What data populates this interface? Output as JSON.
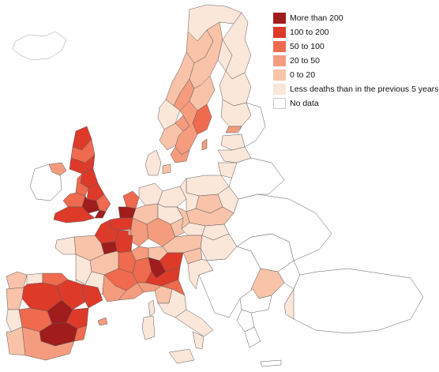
{
  "colors": {
    "background": "#ffffff",
    "border": "#5a5a5a",
    "more_than_200": "#a11c1c",
    "100_to_200": "#dd3a2a",
    "50_to_100": "#ef6a4e",
    "20_to_50": "#f59c7e",
    "0_to_20": "#f8c3a9",
    "less_deaths": "#fbe6da",
    "no_data": "#ffffff"
  },
  "legend": [
    {
      "label": "More than 200",
      "color": "#a11c1c"
    },
    {
      "label": "100 to 200",
      "color": "#dd3a2a"
    },
    {
      "label": "50 to 100",
      "color": "#ef6a4e"
    },
    {
      "label": "20 to 50",
      "color": "#f59c7e"
    },
    {
      "label": "0 to 20",
      "color": "#f8c3a9"
    },
    {
      "label": "Less deaths than in the previous 5 years",
      "color": "#fbe6da"
    },
    {
      "label": "No data",
      "color": "#ffffff"
    }
  ]
}
